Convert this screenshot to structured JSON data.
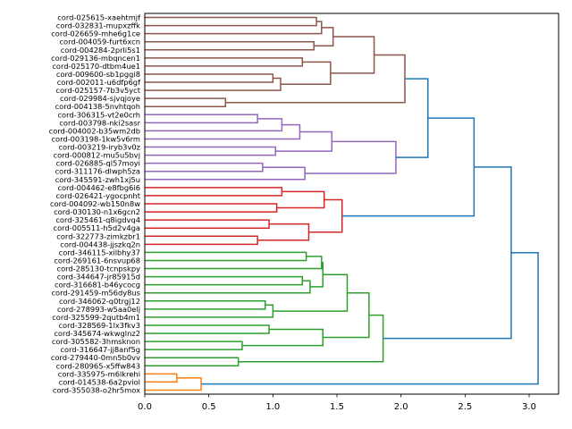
{
  "chart_data": {
    "type": "dendrogram",
    "orientation": "left",
    "title": "",
    "xlabel": "",
    "ylabel": "",
    "xlim": [
      0,
      3.23
    ],
    "xticks": [
      "0.0",
      "0.5",
      "1.0",
      "1.5",
      "2.0",
      "2.5",
      "3.0"
    ],
    "xtick_values": [
      0,
      0.5,
      1.0,
      1.5,
      2.0,
      2.5,
      3.0
    ],
    "colors": {
      "blue": "#1f77b4",
      "orange": "#ff7f0e",
      "green": "#2ca02c",
      "red": "#d62728",
      "purple": "#9467bd",
      "brown": "#8c564b"
    },
    "leaves": [
      "cord-025615-xaehtmjf",
      "cord-032831-mupxzffk",
      "cord-026659-mhe6g1ce",
      "cord-004059-furt6xcn",
      "cord-004284-2prli5s1",
      "cord-029136-mbqncen1",
      "cord-025170-dtbm4ue1",
      "cord-009600-sb1pggi8",
      "cord-002011-u6dfp6gf",
      "cord-025157-7b3v5yct",
      "cord-029984-sjvqjoye",
      "cord-004138-5nvhtqoh",
      "cord-306315-vt2e0crh",
      "cord-003798-nki2sasr",
      "cord-004002-b35wm2db",
      "cord-003198-1kw5v6rm",
      "cord-003219-iryb3v0z",
      "cord-000812-mu5u5bvj",
      "cord-026885-ql57moyi",
      "cord-311176-dlwph5za",
      "cord-345591-zwh1xj5u",
      "cord-004462-e8fbg6i6",
      "cord-026421-ygocpnht",
      "cord-004092-wb150n8w",
      "cord-030130-n1x6gcn2",
      "cord-325461-q8igdvq4",
      "cord-005511-h5d2v4ga",
      "cord-322773-zimkzbr1",
      "cord-004438-jjszkq2n",
      "cord-346115-xilbhy37",
      "cord-269161-6nsvup68",
      "cord-285130-tcnpskpy",
      "cord-344647-jr85915d",
      "cord-316681-b46ycocg",
      "cord-291459-m56dy8us",
      "cord-346062-q0trgj12",
      "cord-278993-w5aa0elj",
      "cord-325599-2qutb4m1",
      "cord-328569-1lx3fkv3",
      "cord-345674-wkwglnz2",
      "cord-305582-3hmsknon",
      "cord-316647-jj8anf5g",
      "cord-279440-0mn5b0vv",
      "cord-280965-x5ffw843",
      "cord-335975-m6lkrehi",
      "cord-014538-6a2pviol",
      "cord-355038-o2hr5mox"
    ],
    "tree": {
      "h": 3.07,
      "c": "blue",
      "ch": [
        {
          "h": 2.86,
          "ch": [
            {
              "h": 2.57,
              "ch": [
                {
                  "h": 2.21,
                  "ch": [
                    {
                      "h": 2.03,
                      "c": "brown",
                      "ch": [
                        {
                          "h": 1.79,
                          "ch": [
                            {
                              "h": 1.47,
                              "ch": [
                                {
                                  "h": 1.38,
                                  "ch": [
                                    {
                                      "h": 1.34,
                                      "ch": [
                                        0,
                                        1
                                      ]
                                    },
                                    2
                                  ]
                                },
                                {
                                  "h": 1.32,
                                  "ch": [
                                    3,
                                    4
                                  ]
                                }
                              ]
                            },
                            {
                              "h": 1.45,
                              "ch": [
                                {
                                  "h": 1.23,
                                  "ch": [
                                    5,
                                    6
                                  ]
                                },
                                {
                                  "h": 1.06,
                                  "ch": [
                                    {
                                      "h": 1.0,
                                      "ch": [
                                        7,
                                        8
                                      ]
                                    },
                                    9
                                  ]
                                }
                              ]
                            }
                          ]
                        },
                        {
                          "h": 0.63,
                          "ch": [
                            10,
                            11
                          ]
                        }
                      ]
                    },
                    {
                      "h": 1.96,
                      "c": "purple",
                      "ch": [
                        {
                          "h": 1.46,
                          "ch": [
                            {
                              "h": 1.21,
                              "ch": [
                                {
                                  "h": 1.07,
                                  "ch": [
                                    {
                                      "h": 0.88,
                                      "ch": [
                                        12,
                                        13
                                      ]
                                    },
                                    14
                                  ]
                                },
                                15
                              ]
                            },
                            {
                              "h": 1.02,
                              "ch": [
                                16,
                                17
                              ]
                            }
                          ]
                        },
                        {
                          "h": 1.25,
                          "ch": [
                            {
                              "h": 0.92,
                              "ch": [
                                18,
                                19
                              ]
                            },
                            20
                          ]
                        }
                      ]
                    }
                  ]
                },
                {
                  "h": 1.54,
                  "c": "red",
                  "ch": [
                    {
                      "h": 1.4,
                      "ch": [
                        {
                          "h": 1.07,
                          "ch": [
                            21,
                            22
                          ]
                        },
                        {
                          "h": 1.03,
                          "ch": [
                            23,
                            24
                          ]
                        }
                      ]
                    },
                    {
                      "h": 1.28,
                      "ch": [
                        {
                          "h": 0.97,
                          "ch": [
                            25,
                            26
                          ]
                        },
                        {
                          "h": 0.88,
                          "ch": [
                            27,
                            28
                          ]
                        }
                      ]
                    }
                  ]
                }
              ]
            },
            {
              "h": 1.86,
              "c": "green",
              "ch": [
                {
                  "h": 1.75,
                  "ch": [
                    {
                      "h": 1.58,
                      "ch": [
                        {
                          "h": 1.39,
                          "ch": [
                            {
                              "h": 1.38,
                              "ch": [
                                {
                                  "h": 1.26,
                                  "ch": [
                                    29,
                                    30
                                  ]
                                },
                                31
                              ]
                            },
                            {
                              "h": 1.29,
                              "ch": [
                                {
                                  "h": 1.23,
                                  "ch": [
                                    32,
                                    33
                                  ]
                                },
                                34
                              ]
                            }
                          ]
                        },
                        {
                          "h": 1.0,
                          "ch": [
                            {
                              "h": 0.94,
                              "ch": [
                                35,
                                36
                              ]
                            },
                            37
                          ]
                        }
                      ]
                    },
                    {
                      "h": 1.39,
                      "ch": [
                        {
                          "h": 0.97,
                          "ch": [
                            38,
                            39
                          ]
                        },
                        {
                          "h": 0.76,
                          "ch": [
                            40,
                            41
                          ]
                        }
                      ]
                    }
                  ]
                },
                {
                  "h": 0.73,
                  "ch": [
                    42,
                    43
                  ]
                }
              ]
            }
          ]
        },
        {
          "h": 0.44,
          "c": "orange",
          "ch": [
            {
              "h": 0.25,
              "ch": [
                44,
                45
              ]
            },
            46
          ]
        }
      ]
    }
  }
}
